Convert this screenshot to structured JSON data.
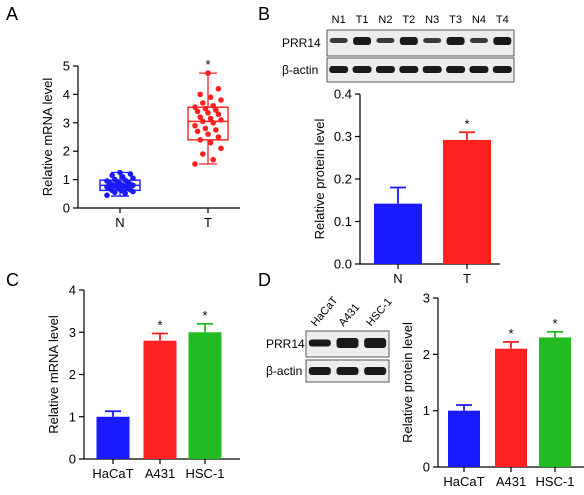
{
  "panels": {
    "A": {
      "letter": "A"
    },
    "B": {
      "letter": "B"
    },
    "C": {
      "letter": "C"
    },
    "D": {
      "letter": "D"
    }
  },
  "blot_B": {
    "lanes": [
      "N1",
      "T1",
      "N2",
      "T2",
      "N3",
      "T3",
      "N4",
      "T4"
    ],
    "rows": [
      "PRR14",
      "β-actin"
    ]
  },
  "blot_D": {
    "lanes": [
      "HaCaT",
      "A431",
      "HSC-1"
    ],
    "rows": [
      "PRR14",
      "β-actin"
    ]
  },
  "colors": {
    "blue": "#1a1aff",
    "red": "#ff2020",
    "green": "#22bb22",
    "black": "#000000"
  },
  "chart_data": [
    {
      "id": "A",
      "type": "box",
      "categories": [
        "N",
        "T"
      ],
      "ylabel": "Relative mRNA level",
      "ylim": [
        0,
        5
      ],
      "yticks": [
        0,
        1,
        2,
        3,
        4,
        5
      ],
      "boxes": [
        {
          "name": "N",
          "min": 0.42,
          "q1": 0.62,
          "median": 0.8,
          "q3": 0.98,
          "max": 1.25,
          "color": "#1a1aff"
        },
        {
          "name": "T",
          "min": 1.55,
          "q1": 2.4,
          "median": 3.05,
          "q3": 3.55,
          "max": 4.75,
          "color": "#ff2020"
        }
      ],
      "points": [
        {
          "category": "N",
          "values": [
            0.45,
            0.52,
            0.55,
            0.58,
            0.6,
            0.62,
            0.64,
            0.66,
            0.68,
            0.7,
            0.72,
            0.74,
            0.76,
            0.78,
            0.8,
            0.8,
            0.82,
            0.84,
            0.86,
            0.88,
            0.9,
            0.92,
            0.95,
            0.98,
            1.0,
            1.05,
            1.1,
            1.15,
            1.2,
            1.25
          ]
        },
        {
          "category": "T",
          "values": [
            1.55,
            1.7,
            1.9,
            2.1,
            2.3,
            2.4,
            2.5,
            2.6,
            2.7,
            2.75,
            2.8,
            2.9,
            3.0,
            3.05,
            3.1,
            3.15,
            3.2,
            3.3,
            3.35,
            3.4,
            3.45,
            3.5,
            3.55,
            3.6,
            3.7,
            3.8,
            3.9,
            4.0,
            4.2,
            4.75
          ]
        }
      ],
      "annotations": [
        {
          "category": "T",
          "text": "*"
        }
      ]
    },
    {
      "id": "B",
      "type": "bar",
      "categories": [
        "N",
        "T"
      ],
      "values": [
        0.142,
        0.292
      ],
      "errors": [
        0.038,
        0.018
      ],
      "colors": [
        "#1a1aff",
        "#ff2020"
      ],
      "ylabel": "Relative protein level",
      "ylim": [
        0,
        0.4
      ],
      "yticks": [
        "0.0",
        "0.1",
        "0.2",
        "0.3",
        "0.4"
      ],
      "annotations": [
        {
          "category": "T",
          "text": "*"
        }
      ]
    },
    {
      "id": "C",
      "type": "bar",
      "categories": [
        "HaCaT",
        "A431",
        "HSC-1"
      ],
      "values": [
        1.0,
        2.8,
        3.0
      ],
      "errors": [
        0.13,
        0.17,
        0.2
      ],
      "colors": [
        "#1a1aff",
        "#ff2020",
        "#22bb22"
      ],
      "ylabel": "Relative mRNA level",
      "ylim": [
        0,
        4
      ],
      "yticks": [
        "0",
        "1",
        "2",
        "3",
        "4"
      ],
      "annotations": [
        {
          "category": "A431",
          "text": "*"
        },
        {
          "category": "HSC-1",
          "text": "*"
        }
      ]
    },
    {
      "id": "D",
      "type": "bar",
      "categories": [
        "HaCaT",
        "A431",
        "HSC-1"
      ],
      "values": [
        1.0,
        2.1,
        2.3
      ],
      "errors": [
        0.1,
        0.12,
        0.1
      ],
      "colors": [
        "#1a1aff",
        "#ff2020",
        "#22bb22"
      ],
      "ylabel": "Relative protein level",
      "ylim": [
        0,
        3
      ],
      "yticks": [
        "0",
        "1",
        "2",
        "3"
      ],
      "annotations": [
        {
          "category": "A431",
          "text": "*"
        },
        {
          "category": "HSC-1",
          "text": "*"
        }
      ]
    }
  ]
}
